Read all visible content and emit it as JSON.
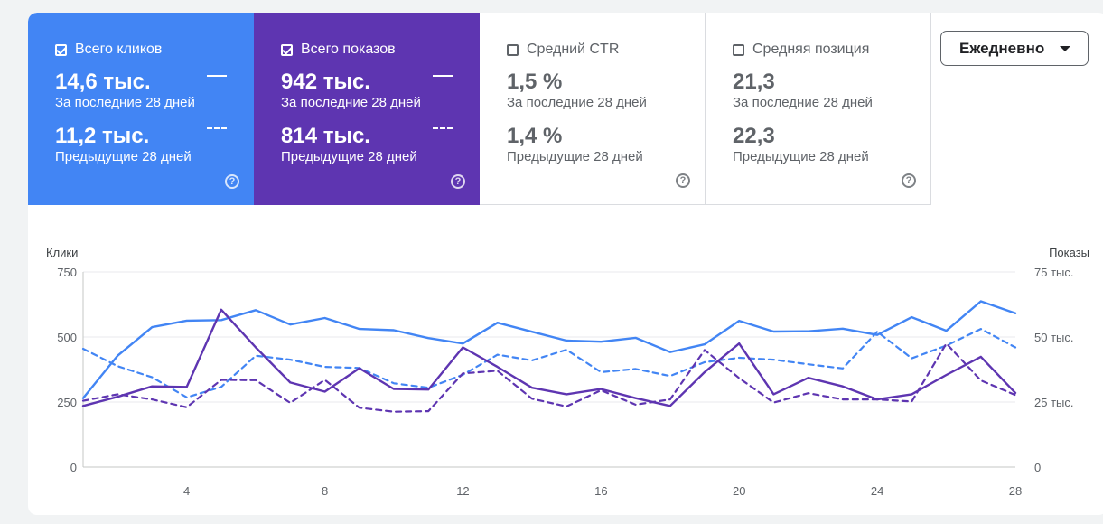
{
  "metrics": [
    {
      "label": "Всего кликов",
      "current_value": "14,6 тыс.",
      "current_label": "За последние 28 дней",
      "previous_value": "11,2 тыс.",
      "previous_label": "Предыдущие 28 дней",
      "checked": true,
      "color": "#4285f4",
      "help": "?"
    },
    {
      "label": "Всего показов",
      "current_value": "942 тыс.",
      "current_label": "За последние 28 дней",
      "previous_value": "814 тыс.",
      "previous_label": "Предыдущие 28 дней",
      "checked": true,
      "color": "#5e35b1",
      "help": "?"
    },
    {
      "label": "Средний CTR",
      "current_value": "1,5 %",
      "current_label": "За последние 28 дней",
      "previous_value": "1,4 %",
      "previous_label": "Предыдущие 28 дней",
      "checked": false,
      "help": "?"
    },
    {
      "label": "Средняя позиция",
      "current_value": "21,3",
      "current_label": "За последние 28 дней",
      "previous_value": "22,3",
      "previous_label": "Предыдущие 28 дней",
      "checked": false,
      "help": "?"
    }
  ],
  "dropdown": {
    "selected": "Ежедневно",
    "icon": "chevron-down-icon"
  },
  "chart_data": {
    "type": "line",
    "title": "",
    "xlabel": "",
    "ylabel": "Клики",
    "y2label": "Показы",
    "x": [
      1,
      2,
      3,
      4,
      5,
      6,
      7,
      8,
      9,
      10,
      11,
      12,
      13,
      14,
      15,
      16,
      17,
      18,
      19,
      20,
      21,
      22,
      23,
      24,
      25,
      26,
      27,
      28
    ],
    "x_ticks": [
      "4",
      "8",
      "12",
      "16",
      "20",
      "24",
      "28"
    ],
    "ylim": [
      0,
      750
    ],
    "y_ticks": [
      "0",
      "250",
      "500",
      "750"
    ],
    "y2lim": [
      0,
      75000
    ],
    "y2_ticks": [
      "0",
      "25 тыс.",
      "50 тыс.",
      "75 тыс."
    ],
    "grid": true,
    "series": [
      {
        "name": "Всего кликов",
        "axis": "left",
        "style": "solid",
        "color": "#4285f4",
        "values": [
          265,
          428,
          538,
          563,
          565,
          603,
          548,
          573,
          531,
          526,
          496,
          475,
          555,
          520,
          486,
          482,
          497,
          442,
          472,
          562,
          521,
          522,
          532,
          508,
          576,
          524,
          637,
          591
        ]
      },
      {
        "name": "Всего кликов",
        "axis": "left",
        "style": "dashed",
        "color": "#4285f4",
        "values": [
          455,
          388,
          345,
          268,
          308,
          428,
          413,
          385,
          381,
          322,
          305,
          355,
          432,
          410,
          451,
          365,
          377,
          350,
          403,
          420,
          413,
          395,
          379,
          520,
          418,
          467,
          531,
          460
        ]
      },
      {
        "name": "Всего показов",
        "axis": "right",
        "style": "solid",
        "color": "#5e35b1",
        "values": [
          23500,
          27000,
          31000,
          30800,
          60500,
          46000,
          32500,
          29000,
          38000,
          30000,
          29800,
          46000,
          38500,
          30500,
          28000,
          30000,
          26500,
          23500,
          36500,
          47500,
          28000,
          34300,
          31000,
          26000,
          28000,
          35400,
          42400,
          28500
        ]
      },
      {
        "name": "Всего показов",
        "axis": "right",
        "style": "dashed",
        "color": "#5e35b1",
        "values": [
          25500,
          28000,
          26000,
          23000,
          33500,
          33400,
          24700,
          33500,
          22800,
          21300,
          21500,
          36000,
          37000,
          26300,
          23300,
          29500,
          24000,
          26000,
          45000,
          34200,
          24800,
          28400,
          26000,
          26000,
          25200,
          47500,
          33300,
          27700
        ]
      }
    ]
  }
}
